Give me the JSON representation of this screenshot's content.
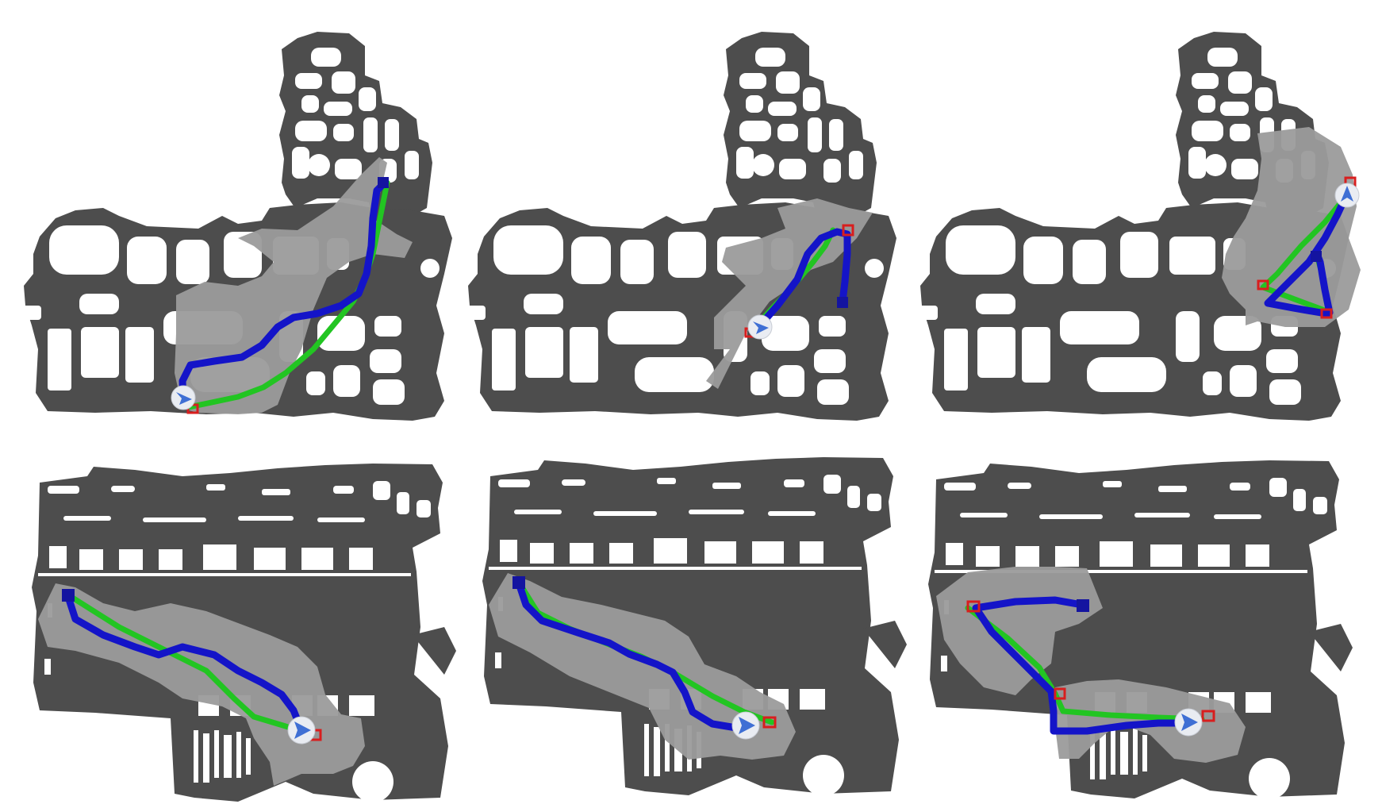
{
  "colors": {
    "background": "#ffffff",
    "obstacle": "#4d4d4d",
    "explored": "#9b9b9b",
    "path_gt": "#22c522",
    "path_agent": "#1414c8",
    "path_agent_highlight": "#1e6ef0",
    "goal_marker": "#d81e1e",
    "start_marker": "#1414a0",
    "agent_circle": "#e9ecf2",
    "agent_arrow": "#3f6fd4"
  },
  "icons": {
    "agent": "agent-arrow-icon",
    "start": "start-square-icon",
    "goal": "goal-square-icon"
  },
  "panels": [
    {
      "id": "top-left",
      "map": "A"
    },
    {
      "id": "top-middle",
      "map": "A"
    },
    {
      "id": "top-right",
      "map": "A"
    },
    {
      "id": "bottom-left",
      "map": "B"
    },
    {
      "id": "bottom-middle",
      "map": "B"
    },
    {
      "id": "bottom-right",
      "map": "B"
    }
  ]
}
